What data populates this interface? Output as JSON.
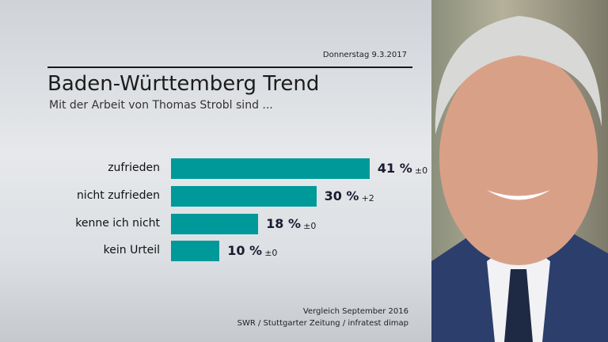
{
  "header": {
    "date": "Donnerstag 9.3.2017",
    "title": "Baden-Württemberg Trend",
    "subtitle": "Mit der Arbeit von Thomas Strobl sind ..."
  },
  "chart_data": {
    "type": "bar",
    "orientation": "horizontal",
    "title": "Baden-Württemberg Trend",
    "subtitle": "Mit der Arbeit von Thomas Strobl sind ...",
    "categories": [
      "zufrieden",
      "nicht zufrieden",
      "kenne ich nicht",
      "kein Urteil"
    ],
    "values": [
      41,
      30,
      18,
      10
    ],
    "value_labels": [
      "41 %",
      "30 %",
      "18 %",
      "10 %"
    ],
    "changes": [
      "±0",
      "+2",
      "±0",
      "±0"
    ],
    "unit": "%",
    "xlim": [
      0,
      100
    ],
    "grid": false,
    "bar_color": "#00999a"
  },
  "footer": {
    "comparison": "Vergleich September 2016",
    "source": "SWR / Stuttgarter Zeitung / infratest dimap"
  },
  "photo": {
    "subject": "portrait-photo"
  }
}
